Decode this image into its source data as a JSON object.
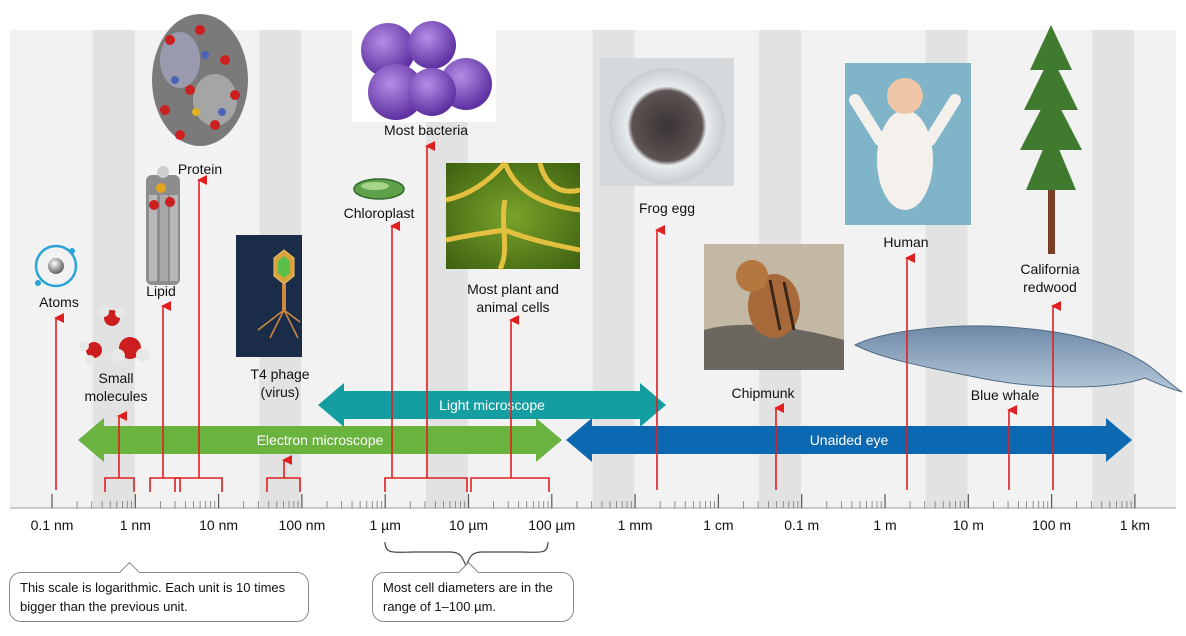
{
  "axis": {
    "tick_labels": [
      "0.1 nm",
      "1 nm",
      "10 nm",
      "100 nm",
      "1 µm",
      "10 µm",
      "100 µm",
      "1 mm",
      "1 cm",
      "0.1 m",
      "1 m",
      "10 m",
      "100 m",
      "1 km"
    ],
    "scale": "logarithmic"
  },
  "ranges": [
    {
      "label": "Electron microscope",
      "from": "0.1 nm",
      "to": "100 µm",
      "color": "#6bb33f"
    },
    {
      "label": "Light microscope",
      "from": "1 µm",
      "to": "1 mm",
      "color": "#159ea2"
    },
    {
      "label": "Unaided eye",
      "from": "100 µm",
      "to": "1 km",
      "color": "#0d68b2"
    }
  ],
  "items": [
    {
      "id": "atoms",
      "label": "Atoms"
    },
    {
      "id": "small-molecules",
      "label": "Small molecules"
    },
    {
      "id": "lipid",
      "label": "Lipid"
    },
    {
      "id": "protein",
      "label": "Protein"
    },
    {
      "id": "t4-phage",
      "label": "T4 phage (virus)"
    },
    {
      "id": "chloroplast",
      "label": "Chloroplast"
    },
    {
      "id": "most-bacteria",
      "label": "Most bacteria"
    },
    {
      "id": "cells",
      "label": "Most plant and animal cells"
    },
    {
      "id": "frog-egg",
      "label": "Frog egg"
    },
    {
      "id": "chipmunk",
      "label": "Chipmunk"
    },
    {
      "id": "human",
      "label": "Human"
    },
    {
      "id": "blue-whale",
      "label": "Blue whale"
    },
    {
      "id": "redwood",
      "label": "California redwood"
    }
  ],
  "notes": {
    "log_scale": "This scale is logarithmic. Each unit is 10 times bigger than the previous unit.",
    "cell_range": "Most cell diameters are in the range of 1–100 µm."
  },
  "colors": {
    "arrow": "#e02020",
    "band_light": "#f2f2f2",
    "band_dark": "#e2e2e2"
  }
}
